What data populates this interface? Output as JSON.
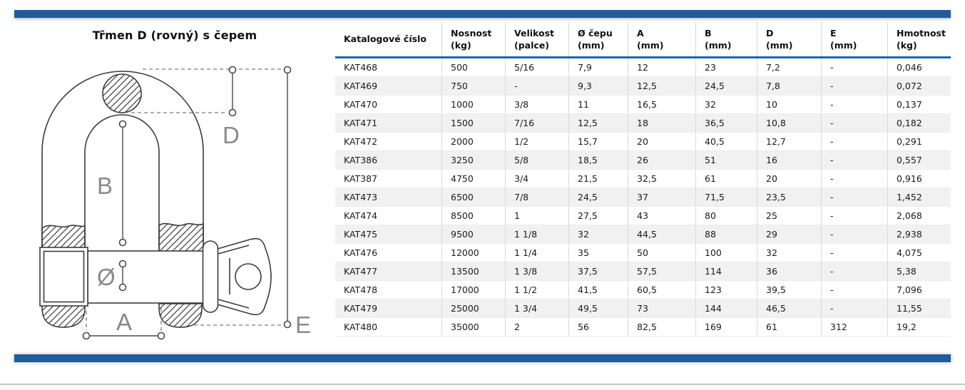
{
  "page": {
    "title": "Třmen D (rovný) s čepem"
  },
  "colors": {
    "accent_blue": "#1e5c9e",
    "header_rule_blue": "#1a6aad",
    "row_alt_gray": "#f1f1f1",
    "drawing_line": "#3b3b3b",
    "dim_label_gray": "#8a8a8a"
  },
  "diagram": {
    "labels": {
      "b": "B",
      "d": "D",
      "diameter": "Ø",
      "a": "A",
      "e": "E"
    }
  },
  "table": {
    "columns": [
      {
        "label": "Katalogové číslo",
        "unit": ""
      },
      {
        "label": "Nosnost",
        "unit": "(kg)"
      },
      {
        "label": "Velikost",
        "unit": "(palce)"
      },
      {
        "label": "Ø čepu",
        "unit": "(mm)"
      },
      {
        "label": "A",
        "unit": "(mm)"
      },
      {
        "label": "B",
        "unit": "(mm)"
      },
      {
        "label": "D",
        "unit": "(mm)"
      },
      {
        "label": "E",
        "unit": "(mm)"
      },
      {
        "label": "Hmotnost",
        "unit": "(kg)"
      }
    ],
    "rows": [
      [
        "KAT468",
        "500",
        "5/16",
        "7,9",
        "12",
        "23",
        "7,2",
        "-",
        "0,046"
      ],
      [
        "KAT469",
        "750",
        "-",
        "9,3",
        "12,5",
        "24,5",
        "7,8",
        "-",
        "0,072"
      ],
      [
        "KAT470",
        "1000",
        "3/8",
        "11",
        "16,5",
        "32",
        "10",
        "-",
        "0,137"
      ],
      [
        "KAT471",
        "1500",
        "7/16",
        "12,5",
        "18",
        "36,5",
        "10,8",
        "-",
        "0,182"
      ],
      [
        "KAT472",
        "2000",
        "1/2",
        "15,7",
        "20",
        "40,5",
        "12,7",
        "-",
        "0,291"
      ],
      [
        "KAT386",
        "3250",
        "5/8",
        "18,5",
        "26",
        "51",
        "16",
        "-",
        "0,557"
      ],
      [
        "KAT387",
        "4750",
        "3/4",
        "21,5",
        "32,5",
        "61",
        "20",
        "-",
        "0,916"
      ],
      [
        "KAT473",
        "6500",
        "7/8",
        "24,5",
        "37",
        "71,5",
        "23,5",
        "-",
        "1,452"
      ],
      [
        "KAT474",
        "8500",
        "1",
        "27,5",
        "43",
        "80",
        "25",
        "-",
        "2,068"
      ],
      [
        "KAT475",
        "9500",
        "1 1/8",
        "32",
        "44,5",
        "88",
        "29",
        "-",
        "2,938"
      ],
      [
        "KAT476",
        "12000",
        "1 1/4",
        "35",
        "50",
        "100",
        "32",
        "-",
        "4,075"
      ],
      [
        "KAT477",
        "13500",
        "1 3/8",
        "37,5",
        "57,5",
        "114",
        "36",
        "-",
        "5,38"
      ],
      [
        "KAT478",
        "17000",
        "1 1/2",
        "41,5",
        "60,5",
        "123",
        "39,5",
        "-",
        "7,096"
      ],
      [
        "KAT479",
        "25000",
        "1 3/4",
        "49,5",
        "73",
        "144",
        "46,5",
        "-",
        "11,55"
      ],
      [
        "KAT480",
        "35000",
        "2",
        "56",
        "82,5",
        "169",
        "61",
        "312",
        "19,2"
      ]
    ]
  }
}
